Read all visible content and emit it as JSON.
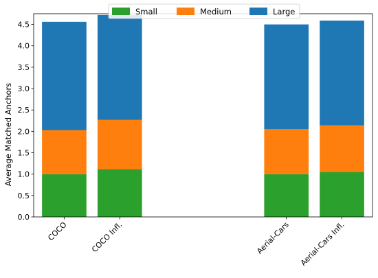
{
  "chart_data": {
    "type": "bar",
    "stacked": true,
    "title": "",
    "xlabel": "",
    "ylabel": "Average Matched Anchors",
    "ylim": [
      0,
      4.75
    ],
    "yticks": [
      0.0,
      0.5,
      1.0,
      1.5,
      2.0,
      2.5,
      3.0,
      3.5,
      4.0,
      4.5
    ],
    "ytick_labels": [
      "0.0",
      "0.5",
      "1.0",
      "1.5",
      "2.0",
      "2.5",
      "3.0",
      "3.5",
      "4.0",
      "4.5"
    ],
    "x": [
      0,
      1,
      4,
      5
    ],
    "xlim": [
      -0.55,
      5.55
    ],
    "categories": [
      "COCO",
      "COCO Infl.",
      "Aerial-Cars",
      "Aerial-Cars Infl."
    ],
    "series": [
      {
        "name": "Small",
        "color": "#2ca02c",
        "values": [
          1.0,
          1.12,
          1.0,
          1.05
        ]
      },
      {
        "name": "Medium",
        "color": "#ff7f0e",
        "values": [
          1.03,
          1.15,
          1.05,
          1.09
        ]
      },
      {
        "name": "Large",
        "color": "#1f77b4",
        "values": [
          2.53,
          2.45,
          2.45,
          2.45
        ]
      }
    ],
    "legend_position": "top-center",
    "grid": false
  }
}
